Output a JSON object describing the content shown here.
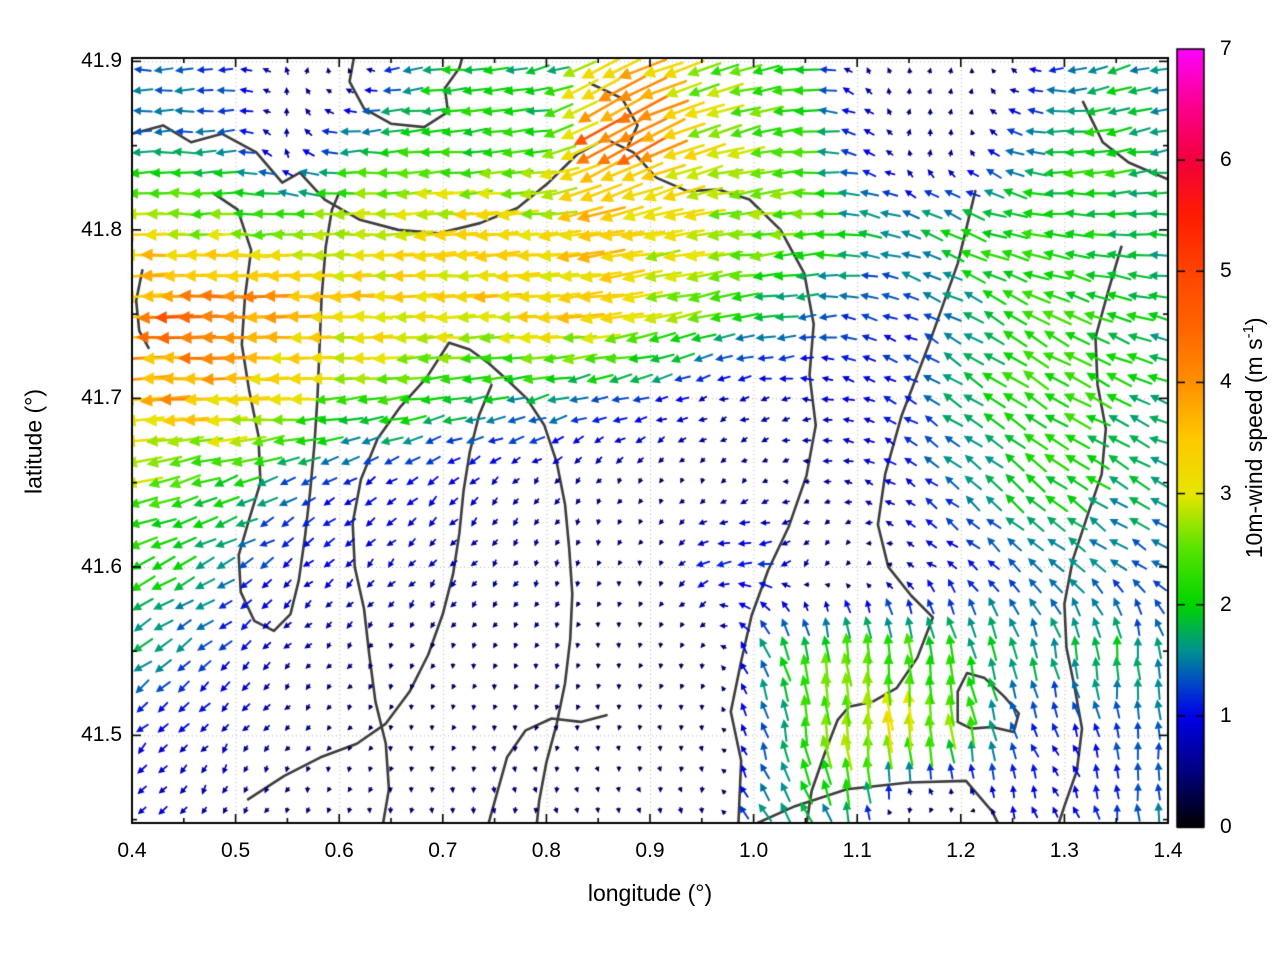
{
  "axes": {
    "xlabel": "longitude (°)",
    "ylabel": "latitude (°)",
    "xlim": [
      0.4,
      1.4
    ],
    "ylim": [
      41.448,
      41.902
    ],
    "x_ticks": [
      0.4,
      0.5,
      0.6,
      0.7,
      0.8,
      0.9,
      1.0,
      1.1,
      1.2,
      1.3,
      1.4
    ],
    "x_tick_labels": [
      "0.4",
      "0.5",
      "0.6",
      "0.7",
      "0.8",
      "0.9",
      "1.0",
      "1.1",
      "1.2",
      "1.3",
      "1.4"
    ],
    "x_minor_ticks": [
      0.45,
      0.55,
      0.65,
      0.75,
      0.85,
      0.95,
      1.05,
      1.15,
      1.25,
      1.35
    ],
    "y_ticks": [
      41.5,
      41.6,
      41.7,
      41.8,
      41.9
    ],
    "y_tick_labels": [
      "41.5",
      "41.6",
      "41.7",
      "41.8",
      "41.9"
    ],
    "y_minor_ticks": [
      41.45,
      41.55,
      41.65,
      41.75,
      41.85
    ],
    "grid": "dotted at major ticks",
    "grid_color": "#b4b4b4",
    "frame_color": "#000000"
  },
  "colorbar": {
    "label_pre": "10m-wind speed (m s",
    "label_sup": "-1",
    "label_post": ")",
    "min": 0,
    "max": 7,
    "ticks": [
      0,
      1,
      2,
      3,
      4,
      5,
      6,
      7
    ],
    "tick_labels": [
      "0",
      "1",
      "2",
      "3",
      "4",
      "5",
      "6",
      "7"
    ]
  },
  "chart_data": {
    "type": "quiver+contour",
    "title": "",
    "xlabel": "longitude (°)",
    "ylabel": "latitude (°)",
    "colorbar_label": "10m-wind speed (m s-1)",
    "direction_convention": "degrees; 0 = toward east, 90 = toward north (pointing direction)",
    "palette": [
      [
        0,
        "#000000"
      ],
      [
        0.5,
        "#00007f"
      ],
      [
        1,
        "#0000e8"
      ],
      [
        1.3,
        "#0048c8"
      ],
      [
        1.6,
        "#00948e"
      ],
      [
        2,
        "#00d400"
      ],
      [
        2.5,
        "#55e400"
      ],
      [
        3,
        "#e6e600"
      ],
      [
        3.5,
        "#ffc800"
      ],
      [
        4,
        "#ff9000"
      ],
      [
        4.5,
        "#ff6400"
      ],
      [
        5,
        "#ff4400"
      ],
      [
        5.5,
        "#ff1c00"
      ],
      [
        6,
        "#f2003c"
      ],
      [
        6.5,
        "#fb0090"
      ],
      [
        7,
        "#ff00ff"
      ]
    ],
    "grid_lons": [
      0.4,
      0.45,
      0.5,
      0.55,
      0.6,
      0.65,
      0.7,
      0.75,
      0.8,
      0.85,
      0.9,
      0.95,
      1.0,
      1.05,
      1.1,
      1.15,
      1.2,
      1.25,
      1.3,
      1.35,
      1.4
    ],
    "grid_lats": [
      41.9,
      41.85,
      41.8,
      41.75,
      41.7,
      41.65,
      41.6,
      41.55,
      41.5,
      41.45
    ],
    "speed": [
      [
        1.4,
        1.3,
        1.2,
        0.6,
        0.5,
        1.2,
        2.0,
        2.1,
        1.5,
        3.2,
        3.6,
        2.6,
        2.4,
        1.9,
        0.6,
        0.4,
        0.4,
        0.5,
        1.2,
        1.7,
        1.4
      ],
      [
        1.5,
        1.5,
        1.3,
        0.7,
        1.6,
        2.0,
        2.1,
        2.0,
        2.3,
        4.4,
        4.0,
        3.0,
        2.6,
        2.2,
        1.1,
        0.5,
        0.5,
        1.3,
        2.0,
        2.1,
        1.6
      ],
      [
        3.1,
        2.9,
        2.6,
        2.6,
        2.8,
        3.1,
        3.3,
        3.3,
        3.1,
        3.3,
        3.1,
        2.9,
        2.7,
        2.4,
        1.7,
        1.8,
        2.0,
        2.2,
        2.2,
        2.0,
        1.8
      ],
      [
        3.7,
        4.4,
        4.4,
        3.9,
        3.5,
        3.3,
        3.3,
        3.3,
        3.3,
        3.4,
        3.0,
        2.4,
        1.8,
        1.5,
        1.2,
        1.1,
        1.6,
        2.1,
        2.2,
        2.0,
        1.8
      ],
      [
        3.5,
        3.7,
        3.4,
        3.0,
        2.5,
        2.3,
        2.0,
        1.8,
        1.7,
        1.4,
        1.2,
        0.8,
        0.7,
        0.8,
        0.9,
        1.2,
        1.8,
        2.1,
        2.2,
        2.0,
        1.8
      ],
      [
        2.7,
        2.3,
        2.0,
        1.4,
        1.1,
        1.0,
        0.9,
        0.7,
        0.6,
        0.5,
        0.4,
        0.35,
        0.45,
        0.5,
        0.7,
        1.0,
        1.5,
        1.9,
        2.0,
        1.8,
        1.7
      ],
      [
        2.2,
        1.8,
        1.4,
        1.0,
        0.9,
        0.8,
        0.7,
        0.6,
        0.5,
        0.4,
        0.35,
        1.0,
        1.3,
        0.6,
        0.4,
        0.6,
        1.0,
        1.3,
        1.5,
        1.4,
        1.3
      ],
      [
        1.7,
        1.4,
        1.0,
        0.6,
        0.5,
        0.45,
        0.4,
        0.4,
        0.4,
        0.35,
        0.3,
        0.4,
        1.5,
        2.1,
        2.6,
        2.3,
        1.9,
        1.7,
        1.8,
        1.8,
        1.5
      ],
      [
        1.1,
        0.9,
        0.7,
        0.5,
        0.4,
        0.35,
        0.3,
        0.4,
        0.4,
        0.35,
        0.3,
        0.35,
        1.1,
        2.2,
        2.9,
        3.0,
        2.4,
        1.2,
        0.9,
        1.2,
        1.4
      ],
      [
        0.9,
        0.7,
        0.5,
        0.45,
        0.4,
        0.45,
        0.45,
        0.5,
        0.45,
        0.35,
        0.4,
        0.5,
        1.5,
        1.8,
        1.4,
        0.8,
        0.6,
        1.0,
        0.9,
        1.2,
        1.5
      ]
    ],
    "direction_deg": [
      [
        180,
        180,
        185,
        90,
        60,
        185,
        185,
        185,
        195,
        205,
        200,
        195,
        190,
        185,
        120,
        80,
        60,
        150,
        185,
        195,
        195
      ],
      [
        180,
        180,
        185,
        100,
        180,
        183,
        185,
        185,
        190,
        212,
        207,
        198,
        192,
        186,
        160,
        80,
        70,
        160,
        185,
        190,
        188
      ],
      [
        180,
        180,
        180,
        181,
        182,
        183,
        184,
        185,
        185,
        189,
        189,
        187,
        185,
        182,
        172,
        162,
        158,
        165,
        175,
        180,
        182
      ],
      [
        182,
        181,
        180,
        180,
        180,
        180,
        182,
        183,
        184,
        187,
        189,
        191,
        191,
        186,
        170,
        155,
        150,
        150,
        155,
        160,
        166
      ],
      [
        184,
        182,
        181,
        182,
        185,
        188,
        190,
        192,
        194,
        196,
        199,
        202,
        196,
        180,
        160,
        150,
        145,
        145,
        150,
        155,
        160
      ],
      [
        192,
        196,
        200,
        206,
        211,
        216,
        221,
        226,
        231,
        236,
        240,
        238,
        220,
        190,
        162,
        147,
        141,
        140,
        145,
        150,
        155
      ],
      [
        204,
        206,
        210,
        216,
        221,
        226,
        231,
        236,
        241,
        246,
        250,
        200,
        182,
        230,
        240,
        150,
        140,
        136,
        140,
        145,
        150
      ],
      [
        214,
        216,
        220,
        226,
        231,
        236,
        241,
        246,
        251,
        256,
        260,
        245,
        115,
        102,
        96,
        95,
        100,
        105,
        100,
        95,
        95
      ],
      [
        224,
        226,
        231,
        236,
        241,
        251,
        256,
        261,
        266,
        270,
        272,
        262,
        108,
        100,
        96,
        95,
        100,
        112,
        120,
        95,
        90
      ],
      [
        234,
        240,
        246,
        251,
        261,
        266,
        271,
        276,
        281,
        286,
        290,
        282,
        125,
        120,
        100,
        270,
        262,
        100,
        120,
        100,
        95
      ]
    ],
    "contours": [
      [
        [
          0.615,
          41.905
        ],
        [
          0.61,
          41.888
        ],
        [
          0.624,
          41.872
        ],
        [
          0.65,
          41.863
        ],
        [
          0.682,
          41.861
        ],
        [
          0.705,
          41.87
        ],
        [
          0.702,
          41.884
        ],
        [
          0.716,
          41.896
        ],
        [
          0.72,
          41.905
        ]
      ],
      [
        [
          0.4,
          41.857
        ],
        [
          0.43,
          41.862
        ],
        [
          0.457,
          41.852
        ],
        [
          0.487,
          41.857
        ],
        [
          0.52,
          41.846
        ],
        [
          0.545,
          41.828
        ],
        [
          0.562,
          41.834
        ],
        [
          0.586,
          41.818
        ],
        [
          0.62,
          41.806
        ],
        [
          0.657,
          41.8
        ],
        [
          0.696,
          41.798
        ],
        [
          0.736,
          41.804
        ],
        [
          0.772,
          41.813
        ],
        [
          0.802,
          41.828
        ],
        [
          0.83,
          41.845
        ],
        [
          0.857,
          41.854
        ],
        [
          0.884,
          41.846
        ],
        [
          0.906,
          41.831
        ],
        [
          0.936,
          41.823
        ],
        [
          0.966,
          41.824
        ],
        [
          0.996,
          41.818
        ],
        [
          1.026,
          41.8
        ],
        [
          1.049,
          41.774
        ],
        [
          1.058,
          41.744
        ],
        [
          1.054,
          41.714
        ],
        [
          1.06,
          41.684
        ],
        [
          1.051,
          41.654
        ],
        [
          1.034,
          41.624
        ],
        [
          1.014,
          41.598
        ],
        [
          0.998,
          41.571
        ],
        [
          0.988,
          41.544
        ],
        [
          0.978,
          41.514
        ],
        [
          0.988,
          41.485
        ],
        [
          0.985,
          41.443
        ]
      ],
      [
        [
          0.842,
          41.887
        ],
        [
          0.873,
          41.878
        ],
        [
          0.888,
          41.862
        ],
        [
          0.879,
          41.85
        ]
      ],
      [
        [
          0.478,
          41.822
        ],
        [
          0.502,
          41.812
        ],
        [
          0.515,
          41.788
        ],
        [
          0.509,
          41.76
        ],
        [
          0.506,
          41.732
        ],
        [
          0.513,
          41.705
        ],
        [
          0.522,
          41.678
        ],
        [
          0.524,
          41.65
        ],
        [
          0.513,
          41.628
        ],
        [
          0.503,
          41.607
        ],
        [
          0.505,
          41.585
        ],
        [
          0.518,
          41.568
        ],
        [
          0.537,
          41.562
        ],
        [
          0.553,
          41.572
        ],
        [
          0.561,
          41.592
        ],
        [
          0.567,
          41.618
        ],
        [
          0.572,
          41.645
        ],
        [
          0.576,
          41.672
        ],
        [
          0.579,
          41.7
        ],
        [
          0.581,
          41.73
        ],
        [
          0.583,
          41.76
        ],
        [
          0.587,
          41.79
        ],
        [
          0.593,
          41.812
        ],
        [
          0.6,
          41.822
        ]
      ],
      [
        [
          0.641,
          41.443
        ],
        [
          0.648,
          41.468
        ],
        [
          0.645,
          41.495
        ],
        [
          0.635,
          41.52
        ],
        [
          0.629,
          41.548
        ],
        [
          0.624,
          41.575
        ],
        [
          0.615,
          41.6
        ],
        [
          0.613,
          41.626
        ],
        [
          0.621,
          41.652
        ],
        [
          0.637,
          41.676
        ],
        [
          0.659,
          41.695
        ],
        [
          0.684,
          41.712
        ],
        [
          0.706,
          41.733
        ],
        [
          0.726,
          41.729
        ],
        [
          0.744,
          41.721
        ],
        [
          0.762,
          41.711
        ],
        [
          0.781,
          41.7
        ],
        [
          0.798,
          41.684
        ],
        [
          0.81,
          41.662
        ],
        [
          0.818,
          41.637
        ],
        [
          0.822,
          41.611
        ],
        [
          0.825,
          41.584
        ],
        [
          0.823,
          41.557
        ],
        [
          0.818,
          41.531
        ],
        [
          0.81,
          41.507
        ],
        [
          0.8,
          41.484
        ],
        [
          0.793,
          41.461
        ],
        [
          0.79,
          41.443
        ]
      ],
      [
        [
          0.512,
          41.462
        ],
        [
          0.547,
          41.476
        ],
        [
          0.582,
          41.487
        ],
        [
          0.617,
          41.495
        ],
        [
          0.645,
          41.507
        ],
        [
          0.668,
          41.526
        ],
        [
          0.686,
          41.548
        ],
        [
          0.7,
          41.572
        ],
        [
          0.71,
          41.596
        ],
        [
          0.716,
          41.62
        ],
        [
          0.72,
          41.645
        ],
        [
          0.726,
          41.668
        ],
        [
          0.735,
          41.69
        ],
        [
          0.747,
          41.708
        ]
      ],
      [
        [
          0.742,
          41.443
        ],
        [
          0.752,
          41.465
        ],
        [
          0.762,
          41.487
        ],
        [
          0.78,
          41.503
        ],
        [
          0.805,
          41.51
        ],
        [
          0.833,
          41.508
        ],
        [
          0.858,
          41.512
        ]
      ],
      [
        [
          1.214,
          41.823
        ],
        [
          1.205,
          41.8
        ],
        [
          1.197,
          41.78
        ],
        [
          1.168,
          41.73
        ],
        [
          1.143,
          41.69
        ],
        [
          1.127,
          41.655
        ],
        [
          1.12,
          41.625
        ],
        [
          1.13,
          41.6
        ],
        [
          1.152,
          41.583
        ],
        [
          1.173,
          41.57
        ],
        [
          1.158,
          41.546
        ],
        [
          1.138,
          41.528
        ],
        [
          1.115,
          41.52
        ],
        [
          1.092,
          41.517
        ],
        [
          1.081,
          41.509
        ],
        [
          1.069,
          41.49
        ],
        [
          1.056,
          41.467
        ],
        [
          1.05,
          41.443
        ]
      ],
      [
        [
          1.355,
          41.79
        ],
        [
          1.342,
          41.763
        ],
        [
          1.33,
          41.736
        ],
        [
          1.332,
          41.708
        ],
        [
          1.34,
          41.682
        ],
        [
          1.336,
          41.655
        ],
        [
          1.322,
          41.63
        ],
        [
          1.308,
          41.604
        ],
        [
          1.3,
          41.578
        ],
        [
          1.302,
          41.552
        ],
        [
          1.31,
          41.528
        ],
        [
          1.317,
          41.504
        ],
        [
          1.312,
          41.479
        ],
        [
          1.3,
          41.458
        ],
        [
          1.292,
          41.443
        ]
      ],
      [
        [
          1.318,
          41.876
        ],
        [
          1.337,
          41.852
        ],
        [
          1.362,
          41.84
        ],
        [
          1.4,
          41.83
        ]
      ],
      [
        [
          1.197,
          41.508
        ],
        [
          1.197,
          41.526
        ],
        [
          1.206,
          41.537
        ],
        [
          1.223,
          41.534
        ],
        [
          1.242,
          41.523
        ],
        [
          1.256,
          41.513
        ],
        [
          1.251,
          41.502
        ],
        [
          1.23,
          41.505
        ],
        [
          1.21,
          41.504
        ],
        [
          1.197,
          41.508
        ]
      ],
      [
        [
          0.41,
          41.776
        ],
        [
          0.404,
          41.758
        ],
        [
          0.407,
          41.74
        ],
        [
          0.416,
          41.73
        ]
      ],
      [
        [
          1.0,
          41.447
        ],
        [
          1.04,
          41.458
        ],
        [
          1.09,
          41.468
        ],
        [
          1.15,
          41.472
        ],
        [
          1.205,
          41.473
        ],
        [
          1.23,
          41.455
        ],
        [
          1.24,
          41.443
        ]
      ]
    ]
  }
}
